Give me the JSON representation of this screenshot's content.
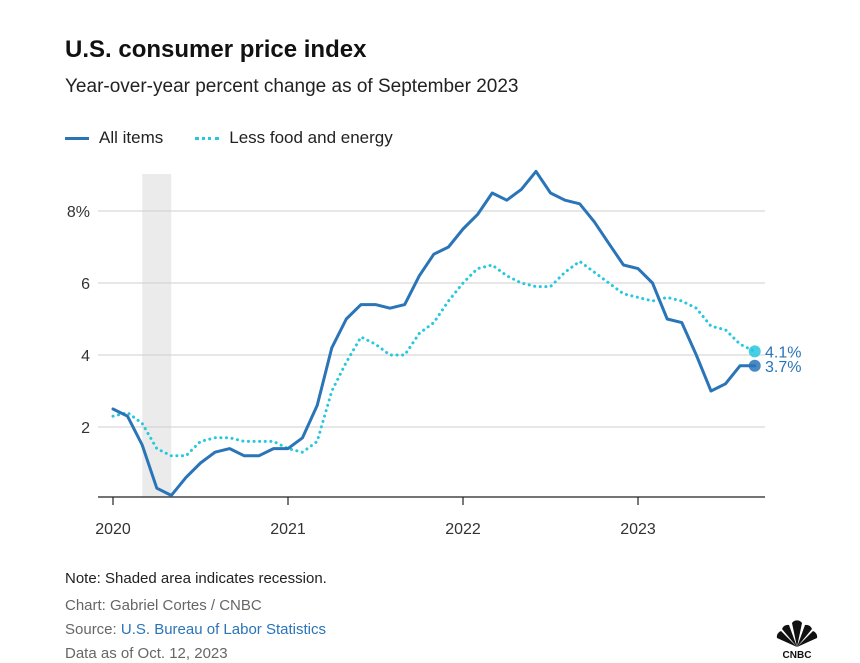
{
  "chart_data": {
    "type": "line",
    "title": "U.S. consumer price index",
    "subtitle": "Year-over-year percent change as of September 2023",
    "xlabel": "",
    "ylabel": "",
    "ylim": [
      0,
      9
    ],
    "xlim": [
      2020,
      2023.75
    ],
    "x_ticks": [
      {
        "value": 2020,
        "label": "2020"
      },
      {
        "value": 2021,
        "label": "2021"
      },
      {
        "value": 2022,
        "label": "2022"
      },
      {
        "value": 2023,
        "label": "2023"
      }
    ],
    "y_ticks": [
      {
        "value": 2,
        "label": "2"
      },
      {
        "value": 4,
        "label": "4"
      },
      {
        "value": 6,
        "label": "6"
      },
      {
        "value": 8,
        "label": "8%"
      }
    ],
    "shaded_regions": [
      {
        "x0": 2020.167,
        "x1": 2020.333,
        "label": "recession"
      }
    ],
    "series": [
      {
        "name": "All items",
        "color": "#2a74b8",
        "style": "solid",
        "end_label": "3.7%",
        "end_value": 3.7,
        "x": [
          2020.0,
          2020.083,
          2020.167,
          2020.25,
          2020.333,
          2020.417,
          2020.5,
          2020.583,
          2020.667,
          2020.75,
          2020.833,
          2020.917,
          2021.0,
          2021.083,
          2021.167,
          2021.25,
          2021.333,
          2021.417,
          2021.5,
          2021.583,
          2021.667,
          2021.75,
          2021.833,
          2021.917,
          2022.0,
          2022.083,
          2022.167,
          2022.25,
          2022.333,
          2022.417,
          2022.5,
          2022.583,
          2022.667,
          2022.75,
          2022.833,
          2022.917,
          2023.0,
          2023.083,
          2023.167,
          2023.25,
          2023.333,
          2023.417,
          2023.5,
          2023.583,
          2023.667
        ],
        "values": [
          2.5,
          2.3,
          1.5,
          0.3,
          0.1,
          0.6,
          1.0,
          1.3,
          1.4,
          1.2,
          1.2,
          1.4,
          1.4,
          1.7,
          2.6,
          4.2,
          5.0,
          5.4,
          5.4,
          5.3,
          5.4,
          6.2,
          6.8,
          7.0,
          7.5,
          7.9,
          8.5,
          8.3,
          8.6,
          9.1,
          8.5,
          8.3,
          8.2,
          7.7,
          7.1,
          6.5,
          6.4,
          6.0,
          5.0,
          4.9,
          4.0,
          3.0,
          3.2,
          3.7,
          3.7
        ]
      },
      {
        "name": "Less food and energy",
        "color": "#27c7de",
        "style": "dotted",
        "end_label": "4.1%",
        "end_value": 4.1,
        "x": [
          2020.0,
          2020.083,
          2020.167,
          2020.25,
          2020.333,
          2020.417,
          2020.5,
          2020.583,
          2020.667,
          2020.75,
          2020.833,
          2020.917,
          2021.0,
          2021.083,
          2021.167,
          2021.25,
          2021.333,
          2021.417,
          2021.5,
          2021.583,
          2021.667,
          2021.75,
          2021.833,
          2021.917,
          2022.0,
          2022.083,
          2022.167,
          2022.25,
          2022.333,
          2022.417,
          2022.5,
          2022.583,
          2022.667,
          2022.75,
          2022.833,
          2022.917,
          2023.0,
          2023.083,
          2023.167,
          2023.25,
          2023.333,
          2023.417,
          2023.5,
          2023.583,
          2023.667
        ],
        "values": [
          2.3,
          2.4,
          2.1,
          1.4,
          1.2,
          1.2,
          1.6,
          1.7,
          1.7,
          1.6,
          1.6,
          1.6,
          1.4,
          1.3,
          1.6,
          3.0,
          3.8,
          4.5,
          4.3,
          4.0,
          4.0,
          4.6,
          4.9,
          5.5,
          6.0,
          6.4,
          6.5,
          6.2,
          6.0,
          5.9,
          5.9,
          6.3,
          6.6,
          6.3,
          6.0,
          5.7,
          5.6,
          5.5,
          5.6,
          5.5,
          5.3,
          4.8,
          4.7,
          4.3,
          4.1
        ]
      }
    ],
    "legend": [
      {
        "label": "All items",
        "style": "solid"
      },
      {
        "label": "Less food and energy",
        "style": "dotted"
      }
    ]
  },
  "footer": {
    "note": "Note: Shaded area indicates recession.",
    "credit": "Chart: Gabriel Cortes / CNBC",
    "source_prefix": "Source: ",
    "source_link": "U.S. Bureau of Labor Statistics",
    "as_of": "Data as of Oct. 12, 2023",
    "logo_text": "CNBC"
  },
  "colors": {
    "all_items": "#2a74b8",
    "core": "#27c7de",
    "grid": "#cfcfcf",
    "recession": "#ebebeb"
  }
}
